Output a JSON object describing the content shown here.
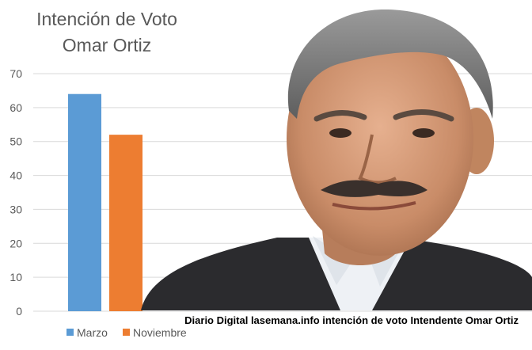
{
  "colors": {
    "marzo": "#5b9bd5",
    "noviembre": "#ed7d31",
    "grid": "#d9d9d9",
    "text": "#595959"
  },
  "photo": {
    "subject": "portrait-of-man-in-suit"
  },
  "caption": "Diario Digital lasemana.info intención de voto Intendente Omar Ortiz",
  "chart_data": {
    "type": "bar",
    "title_lines": [
      "Intención de Voto",
      "Omar Ortiz"
    ],
    "categories": [
      ""
    ],
    "series": [
      {
        "name": "Marzo",
        "values": [
          64
        ]
      },
      {
        "name": "Noviembre",
        "values": [
          52
        ]
      }
    ],
    "ylim": [
      0,
      70
    ],
    "yticks": [
      0,
      10,
      20,
      30,
      40,
      50,
      60,
      70
    ],
    "grid": true,
    "legend": "bottom-left"
  }
}
